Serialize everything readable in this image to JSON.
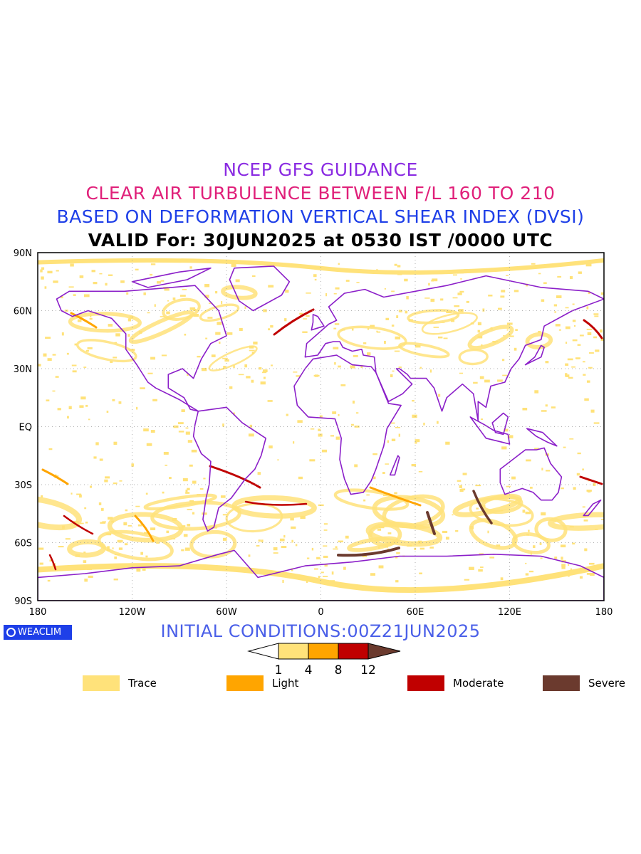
{
  "titles": {
    "line1": "NCEP GFS GUIDANCE",
    "line2": "CLEAR AIR TURBULENCE BETWEEN F/L 160 TO 210",
    "line3": "BASED ON DEFORMATION VERTICAL SHEAR INDEX (DVSI)",
    "line4": "VALID For: 30JUN2025 at 0530 IST /0000 UTC"
  },
  "colors": {
    "line1": "#8a2be2",
    "line2": "#e0207a",
    "line3": "#1e3fe8",
    "init": "#4a5fe8",
    "logo_bg": "#1e3fe8",
    "coast": "#8b1fc9",
    "trace": "#ffe27a",
    "light": "#ffa500",
    "moderate": "#c00000",
    "severe": "#6b3a2e"
  },
  "map": {
    "lon_ticks": [
      "180",
      "120W",
      "60W",
      "0",
      "60E",
      "120E",
      "180"
    ],
    "lat_ticks": [
      "90N",
      "60N",
      "30N",
      "EQ",
      "30S",
      "60S",
      "90S"
    ]
  },
  "initial_conditions": "INITIAL CONDITIONS:00Z21JUN2025",
  "logo_text": "WEACLIM",
  "colorbar": {
    "ticks": [
      "1",
      "4",
      "8",
      "12"
    ]
  },
  "legend": [
    {
      "label": "Trace",
      "color": "#ffe27a"
    },
    {
      "label": "Light",
      "color": "#ffa500"
    },
    {
      "label": "Moderate",
      "color": "#c00000"
    },
    {
      "label": "Severe",
      "color": "#6b3a2e"
    }
  ]
}
